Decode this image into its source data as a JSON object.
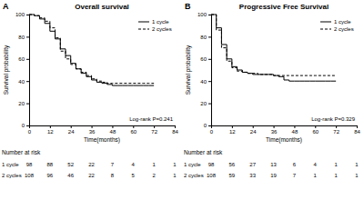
{
  "chart_data": [
    {
      "type": "line",
      "panel_label": "A",
      "title": "Overall survival",
      "x_label": "Time(months)",
      "y_label": "Survival probability",
      "x": [
        0,
        3,
        6,
        9,
        12,
        15,
        18,
        21,
        24,
        27,
        30,
        33,
        36,
        39,
        42,
        45,
        48,
        51,
        54,
        57,
        60,
        63,
        66,
        69,
        72
      ],
      "series": [
        {
          "name": "1 cycle",
          "color": "#000000",
          "line_style": "solid",
          "values": [
            100,
            99,
            96,
            92,
            85,
            78,
            69,
            63,
            56,
            51,
            47,
            44,
            41,
            39,
            38,
            37,
            36,
            36,
            36,
            36,
            36,
            36,
            36,
            36,
            36
          ]
        },
        {
          "name": "2 cycles",
          "color": "#000000",
          "line_style": "dashed",
          "values": [
            100,
            99,
            97,
            94,
            88,
            79,
            67,
            60,
            55,
            51,
            48,
            45,
            42,
            40,
            39,
            38,
            38,
            38,
            38,
            38,
            38,
            38,
            38,
            38,
            38
          ]
        }
      ],
      "xlim": [
        0,
        84
      ],
      "xticks": [
        0,
        12,
        24,
        36,
        48,
        60,
        72,
        84
      ],
      "ylim": [
        0,
        100
      ],
      "yticks": [
        0,
        20,
        40,
        60,
        80,
        100
      ],
      "grid": false,
      "legend": "upper right",
      "annotation": "Log-rank P=0.241",
      "risk_table": {
        "title": "Number at risk",
        "rows": [
          {
            "name": "1 cycle",
            "values": [
              98,
              88,
              52,
              22,
              7,
              4,
              1,
              1
            ]
          },
          {
            "name": "2 cycles",
            "values": [
              108,
              96,
              46,
              22,
              8,
              5,
              2,
              1
            ]
          }
        ]
      }
    },
    {
      "type": "line",
      "panel_label": "B",
      "title": "Progressive Free Survival",
      "x_label": "Time(months)",
      "y_label": "Survival probability",
      "x": [
        0,
        3,
        6,
        9,
        12,
        15,
        18,
        21,
        24,
        27,
        30,
        33,
        36,
        39,
        42,
        45,
        48,
        51,
        54,
        57,
        60,
        63,
        66,
        69,
        72
      ],
      "series": [
        {
          "name": "1 cycle",
          "color": "#000000",
          "line_style": "solid",
          "values": [
            100,
            88,
            73,
            60,
            53,
            50,
            48,
            47,
            46,
            46,
            46,
            46,
            45,
            44,
            41,
            40,
            40,
            40,
            40,
            40,
            40,
            40,
            40,
            40,
            40
          ]
        },
        {
          "name": "2 cycles",
          "color": "#000000",
          "line_style": "dashed",
          "values": [
            100,
            86,
            70,
            58,
            52,
            49,
            48,
            47,
            47,
            46,
            46,
            46,
            45,
            45,
            45,
            45,
            45,
            45,
            45,
            45,
            45,
            45,
            45,
            45,
            45
          ]
        }
      ],
      "xlim": [
        0,
        84
      ],
      "xticks": [
        0,
        12,
        24,
        36,
        48,
        60,
        72,
        84
      ],
      "ylim": [
        0,
        100
      ],
      "yticks": [
        0,
        20,
        40,
        60,
        80,
        100
      ],
      "grid": false,
      "legend": "upper right",
      "annotation": "Log-rank P=0.329",
      "risk_table": {
        "title": "Number at risk",
        "rows": [
          {
            "name": "1 cycle",
            "values": [
              98,
              56,
              27,
              13,
              6,
              4,
              1,
              1
            ]
          },
          {
            "name": "2 cycles",
            "values": [
              108,
              59,
              33,
              19,
              7,
              1,
              1,
              1
            ]
          }
        ]
      }
    }
  ]
}
